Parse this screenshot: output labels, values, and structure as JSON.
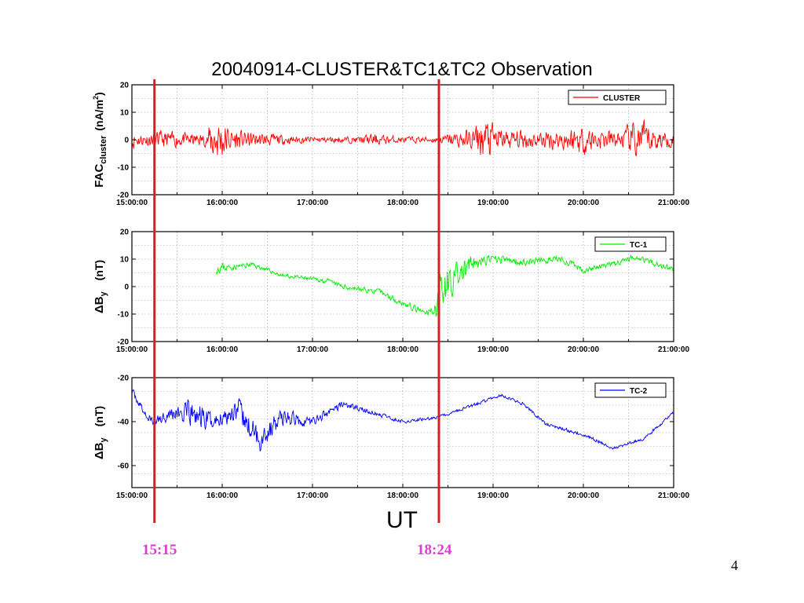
{
  "title": "20040914-CLUSTER&TC1&TC2 Observation",
  "xlabel": "UT",
  "page_number": "4",
  "markers": [
    {
      "time": "15:15",
      "label": "15:15",
      "color": "#d42020"
    },
    {
      "time": "18:24",
      "label": "18:24",
      "color": "#d42020"
    }
  ],
  "marker_label_color": "#e13cd0",
  "chart_data": [
    {
      "type": "line",
      "series": [
        {
          "name": "CLUSTER",
          "color": "#ff0000"
        }
      ],
      "ylabel_main": "FAC",
      "ylabel_sub": "cluster",
      "ylabel_unit": "(nA/m",
      "ylabel_sup": "2",
      "ylabel_close": ")",
      "ylim": [
        -20,
        20
      ],
      "yticks": [
        20,
        10,
        0,
        -10,
        -20
      ],
      "xlim": [
        "15:00:00",
        "21:00:00"
      ],
      "xticks": [
        "15:00:00",
        "16:00:00",
        "17:00:00",
        "18:00:00",
        "19:00:00",
        "20:00:00",
        "21:00:00"
      ],
      "grid": true,
      "legend": "top-right",
      "envelope": [
        [
          "15:00",
          5
        ],
        [
          "15:05",
          3
        ],
        [
          "15:20",
          4
        ],
        [
          "15:40",
          3
        ],
        [
          "15:50",
          3
        ],
        [
          "15:53",
          12
        ],
        [
          "16:00",
          10
        ],
        [
          "16:05",
          6
        ],
        [
          "16:15",
          4
        ],
        [
          "16:30",
          3
        ],
        [
          "16:45",
          2
        ],
        [
          "17:00",
          1.5
        ],
        [
          "17:30",
          1.5
        ],
        [
          "17:40",
          3
        ],
        [
          "17:50",
          2
        ],
        [
          "18:00",
          1.5
        ],
        [
          "18:24",
          1.5
        ],
        [
          "18:30",
          3
        ],
        [
          "18:45",
          5
        ],
        [
          "18:55",
          11
        ],
        [
          "19:05",
          5
        ],
        [
          "19:30",
          4
        ],
        [
          "19:45",
          5
        ],
        [
          "20:00",
          7
        ],
        [
          "20:10",
          5
        ],
        [
          "20:25",
          4
        ],
        [
          "20:35",
          10
        ],
        [
          "20:50",
          5
        ],
        [
          "21:00",
          3
        ]
      ],
      "baseline": [
        [
          "15:00",
          0
        ],
        [
          "21:00",
          0
        ]
      ]
    },
    {
      "type": "line",
      "series": [
        {
          "name": "TC-1",
          "color": "#00ee00"
        }
      ],
      "ylabel_main": "ΔB",
      "ylabel_sub": "y",
      "ylabel_unit": "(nT)",
      "ylim": [
        -20,
        20
      ],
      "yticks": [
        20,
        10,
        0,
        -10,
        -20
      ],
      "xlim": [
        "15:00:00",
        "21:00:00"
      ],
      "xticks": [
        "15:00:00",
        "16:00:00",
        "17:00:00",
        "18:00:00",
        "19:00:00",
        "20:00:00",
        "21:00:00"
      ],
      "grid": true,
      "legend": "top-right",
      "start": "15:56",
      "envelope": [
        [
          "15:56",
          3
        ],
        [
          "16:05",
          1.5
        ],
        [
          "16:30",
          1
        ],
        [
          "17:30",
          1.2
        ],
        [
          "18:00",
          1.5
        ],
        [
          "18:20",
          2
        ],
        [
          "18:24",
          10
        ],
        [
          "18:35",
          7
        ],
        [
          "18:50",
          3
        ],
        [
          "19:00",
          2
        ],
        [
          "20:00",
          1.5
        ],
        [
          "21:00",
          1.5
        ]
      ],
      "baseline": [
        [
          "15:56",
          7
        ],
        [
          "16:05",
          7
        ],
        [
          "16:20",
          8
        ],
        [
          "16:40",
          4
        ],
        [
          "17:10",
          2
        ],
        [
          "17:20",
          0
        ],
        [
          "17:45",
          -2
        ],
        [
          "18:00",
          -6
        ],
        [
          "18:15",
          -10
        ],
        [
          "18:22",
          -8
        ],
        [
          "18:24",
          0
        ],
        [
          "18:35",
          3
        ],
        [
          "18:45",
          8
        ],
        [
          "19:00",
          10
        ],
        [
          "19:20",
          9
        ],
        [
          "19:45",
          10
        ],
        [
          "20:00",
          6
        ],
        [
          "20:20",
          8
        ],
        [
          "20:35",
          11
        ],
        [
          "20:45",
          9
        ],
        [
          "21:00",
          6
        ]
      ]
    },
    {
      "type": "line",
      "series": [
        {
          "name": "TC-2",
          "color": "#0000ff"
        }
      ],
      "ylabel_main": "ΔB",
      "ylabel_sub": "y",
      "ylabel_unit": "(nT)",
      "ylim": [
        -70,
        -20
      ],
      "yticks": [
        -20,
        -40,
        -60
      ],
      "xlim": [
        "15:00:00",
        "21:00:00"
      ],
      "xticks": [
        "15:00:00",
        "16:00:00",
        "17:00:00",
        "18:00:00",
        "19:00:00",
        "20:00:00",
        "21:00:00"
      ],
      "grid": true,
      "legend": "top-right",
      "envelope": [
        [
          "15:00",
          2
        ],
        [
          "15:15",
          3
        ],
        [
          "15:30",
          5
        ],
        [
          "15:40",
          9
        ],
        [
          "15:50",
          7
        ],
        [
          "16:00",
          5
        ],
        [
          "16:15",
          8
        ],
        [
          "16:30",
          7
        ],
        [
          "16:40",
          5
        ],
        [
          "16:50",
          4
        ],
        [
          "17:00",
          3
        ],
        [
          "17:20",
          2
        ],
        [
          "18:00",
          1
        ],
        [
          "21:00",
          1
        ]
      ],
      "baseline": [
        [
          "15:00",
          -26
        ],
        [
          "15:10",
          -38
        ],
        [
          "15:15",
          -40
        ],
        [
          "15:25",
          -36
        ],
        [
          "15:40",
          -37
        ],
        [
          "15:55",
          -40
        ],
        [
          "16:10",
          -34
        ],
        [
          "16:15",
          -40
        ],
        [
          "16:25",
          -48
        ],
        [
          "16:40",
          -38
        ],
        [
          "17:00",
          -40
        ],
        [
          "17:20",
          -32
        ],
        [
          "17:40",
          -36
        ],
        [
          "18:00",
          -40
        ],
        [
          "18:24",
          -38
        ],
        [
          "18:45",
          -33
        ],
        [
          "19:05",
          -28
        ],
        [
          "19:20",
          -32
        ],
        [
          "19:35",
          -41
        ],
        [
          "20:00",
          -46
        ],
        [
          "20:20",
          -52
        ],
        [
          "20:40",
          -48
        ],
        [
          "21:00",
          -36
        ]
      ]
    }
  ]
}
